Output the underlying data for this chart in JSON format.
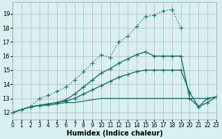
{
  "xlabel": "Humidex (Indice chaleur)",
  "background_color": "#d8f0f0",
  "grid_color": "#c0b0c0",
  "line_color": "#1a7070",
  "xlim": [
    0,
    23
  ],
  "ylim": [
    11.5,
    19.8
  ],
  "xticks": [
    0,
    1,
    2,
    3,
    4,
    5,
    6,
    7,
    8,
    9,
    10,
    11,
    12,
    13,
    14,
    15,
    16,
    17,
    18,
    19,
    20,
    21,
    22,
    23
  ],
  "yticks": [
    12,
    13,
    14,
    15,
    16,
    17,
    18,
    19
  ],
  "lines": [
    {
      "x": [
        0,
        1,
        2,
        3,
        4,
        5,
        6,
        7,
        8,
        9,
        10,
        11,
        12,
        13,
        14,
        15,
        16,
        17,
        18,
        19,
        20,
        21,
        22,
        23
      ],
      "y": [
        12.0,
        12.2,
        12.4,
        13.0,
        13.2,
        13.5,
        13.8,
        14.3,
        14.9,
        15.5,
        16.1,
        15.9,
        17.0,
        17.4,
        18.1,
        18.8,
        18.9,
        19.2,
        19.3,
        18.0,
        null,
        null,
        null,
        null
      ],
      "style": "dotted",
      "marker": "P",
      "markersize": 2.5,
      "linewidth": 1.0
    },
    {
      "x": [
        0,
        2,
        3,
        4,
        5,
        6,
        7,
        8,
        9,
        10,
        11,
        12,
        13,
        14,
        15,
        16,
        17,
        18,
        19,
        20,
        21,
        22,
        23
      ],
      "y": [
        12.0,
        12.4,
        12.5,
        12.6,
        12.7,
        12.9,
        13.3,
        13.8,
        14.3,
        14.8,
        15.1,
        15.5,
        15.8,
        16.1,
        16.3,
        16.0,
        16.0,
        16.0,
        16.0,
        13.0,
        12.4,
        13.0,
        13.1
      ],
      "style": "solid",
      "marker": "P",
      "markersize": 2.5,
      "linewidth": 1.0
    },
    {
      "x": [
        0,
        2,
        3,
        4,
        5,
        6,
        7,
        8,
        9,
        10,
        11,
        12,
        13,
        14,
        15,
        16,
        17,
        18,
        19,
        20,
        21,
        22,
        23
      ],
      "y": [
        12.0,
        12.4,
        12.5,
        12.6,
        12.7,
        12.8,
        13.0,
        13.3,
        13.6,
        13.9,
        14.2,
        14.5,
        14.7,
        14.9,
        15.0,
        15.0,
        15.0,
        15.0,
        15.0,
        13.4,
        12.4,
        12.7,
        13.1
      ],
      "style": "solid",
      "marker": "P",
      "markersize": 2.5,
      "linewidth": 1.0
    },
    {
      "x": [
        0,
        2,
        3,
        4,
        5,
        6,
        7,
        8,
        9,
        10,
        11,
        12,
        13,
        14,
        15,
        16,
        17,
        18,
        19,
        20,
        21,
        22,
        23
      ],
      "y": [
        12.0,
        12.4,
        12.5,
        12.5,
        12.6,
        12.7,
        12.7,
        12.8,
        12.9,
        13.0,
        13.0,
        13.0,
        13.0,
        13.0,
        13.0,
        13.0,
        13.0,
        13.0,
        13.0,
        13.0,
        13.0,
        13.0,
        13.1
      ],
      "style": "solid",
      "marker": null,
      "markersize": 0,
      "linewidth": 0.9
    }
  ]
}
